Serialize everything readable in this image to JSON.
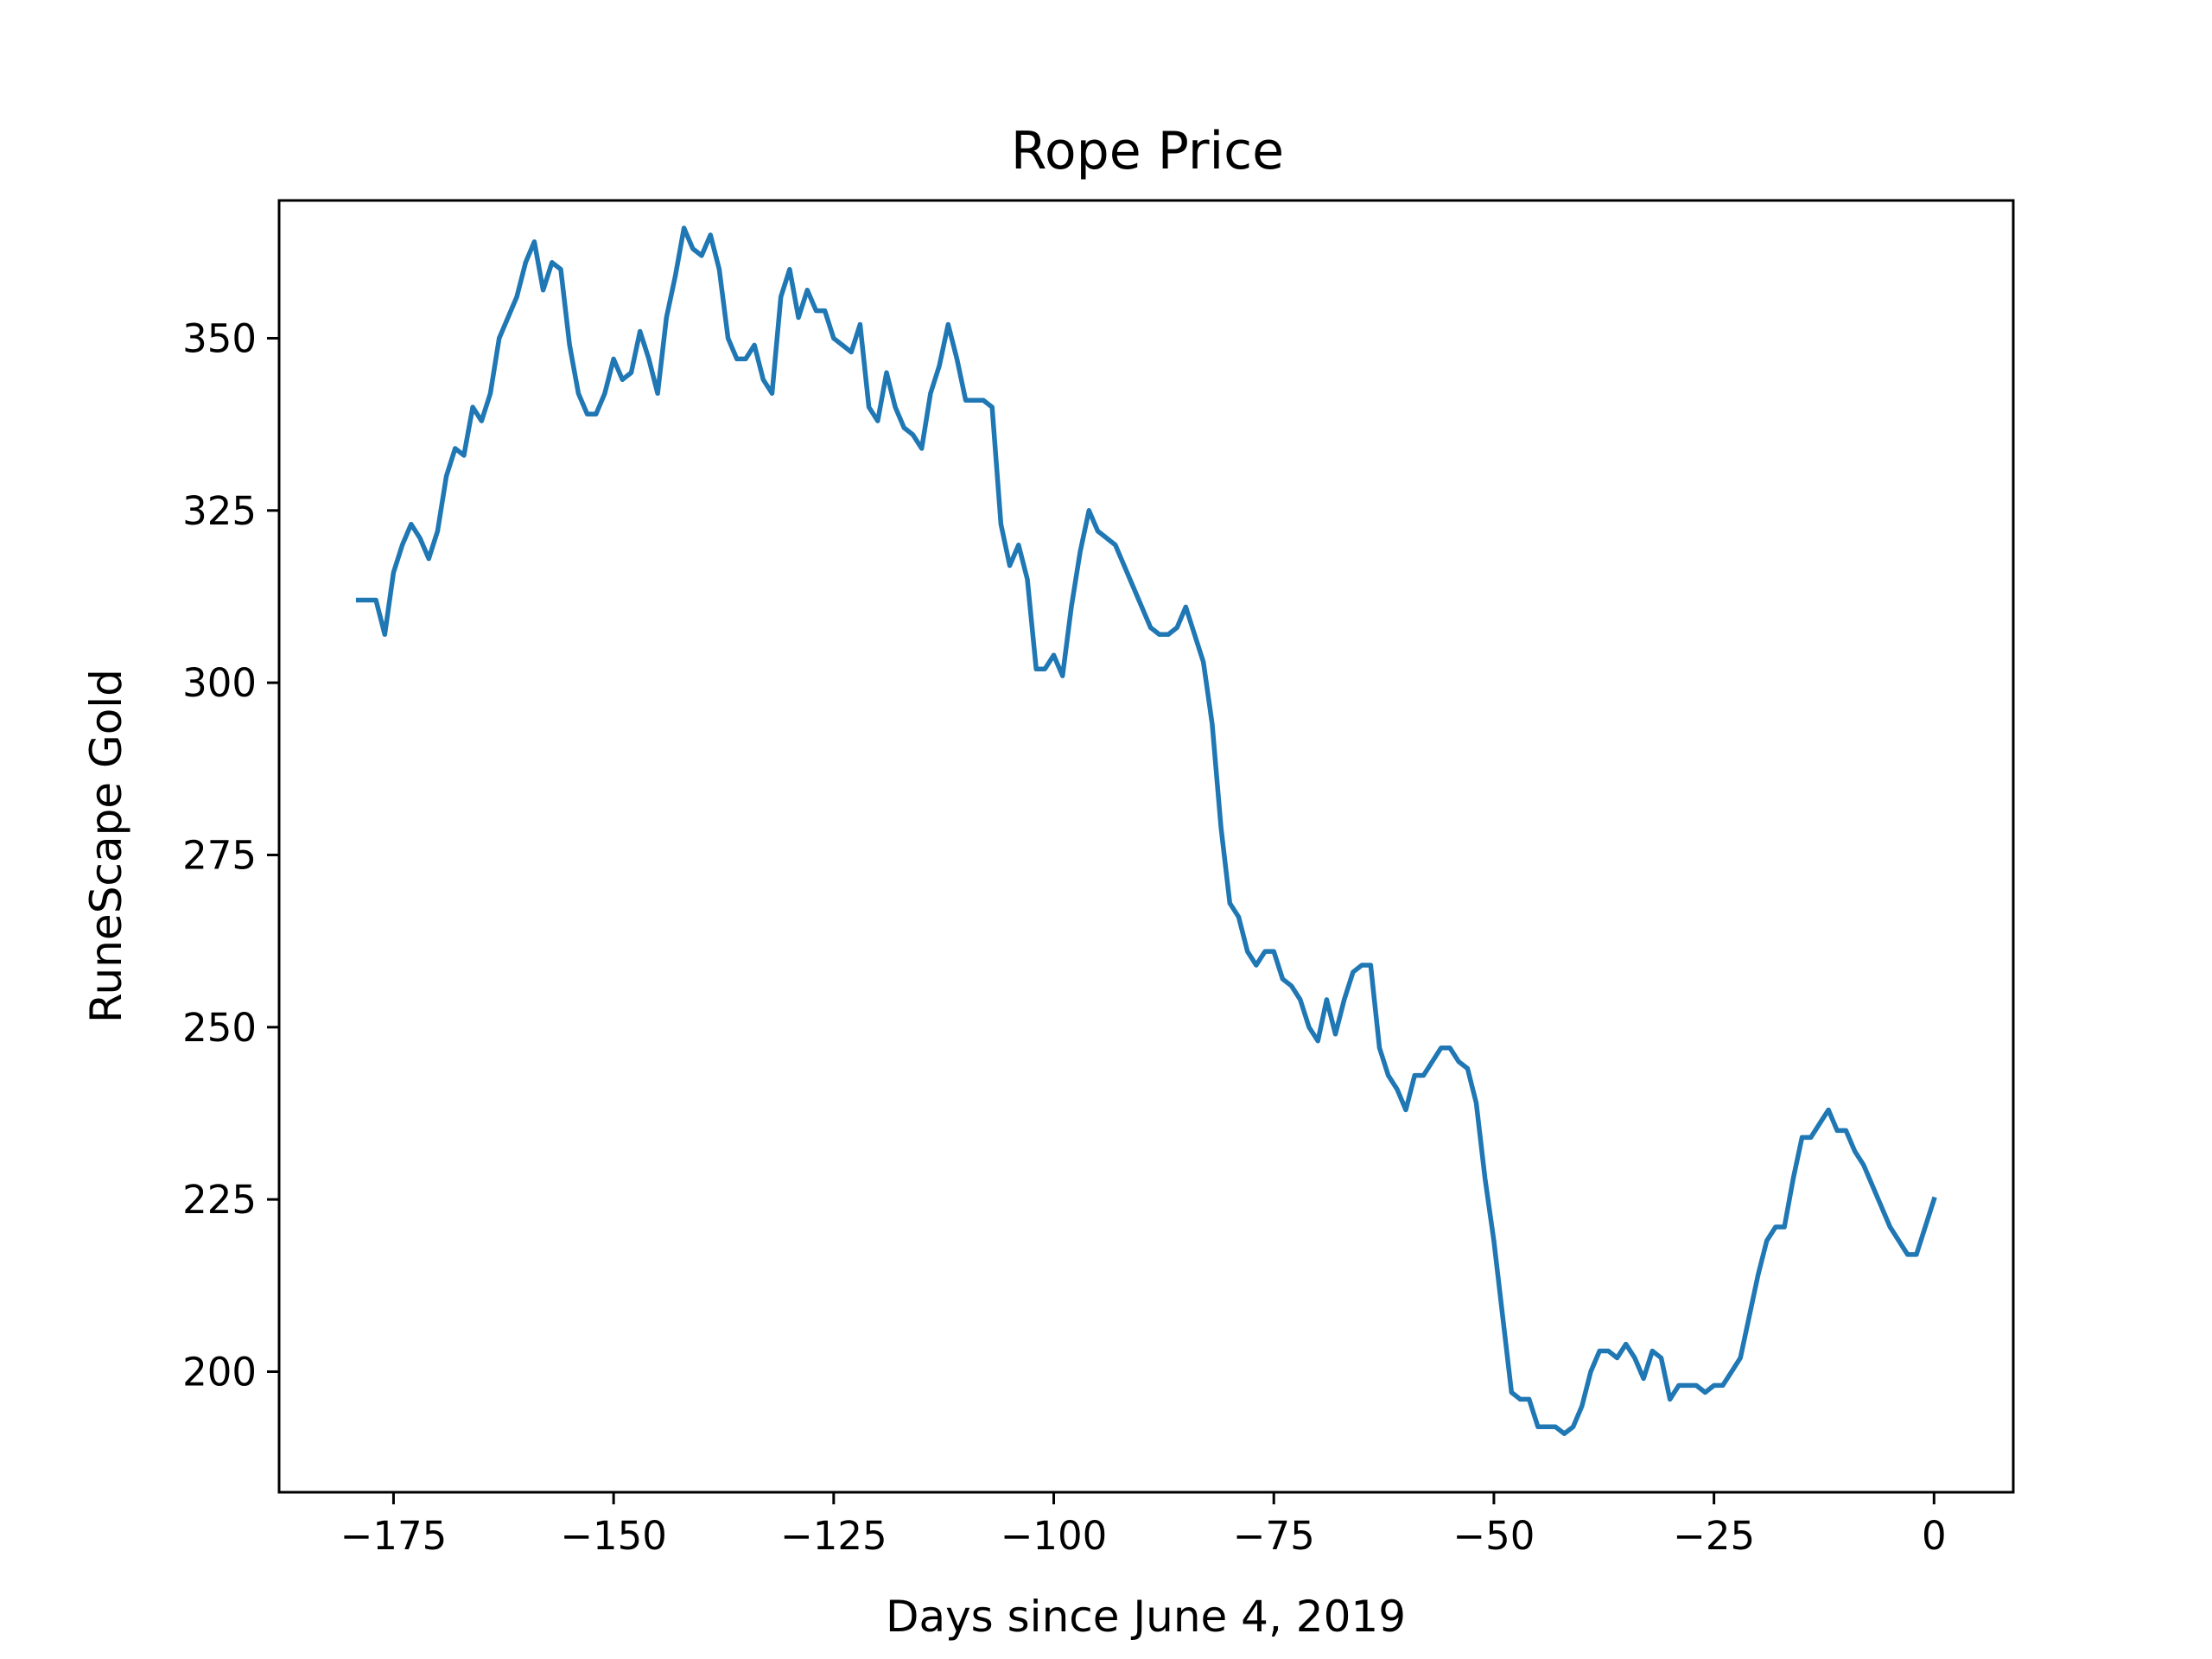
{
  "chart_data": {
    "type": "line",
    "title": "Rope Price",
    "xlabel": "Days since June 4, 2019",
    "ylabel": "RuneScape Gold",
    "xlim": [
      -188,
      9
    ],
    "ylim": [
      182.5,
      370
    ],
    "x_ticks": [
      -175,
      -150,
      -125,
      -100,
      -75,
      -50,
      -25,
      0
    ],
    "x_tick_labels": [
      "−175",
      "−150",
      "−125",
      "−100",
      "−75",
      "−50",
      "−25",
      "0"
    ],
    "y_ticks": [
      200,
      225,
      250,
      275,
      300,
      325,
      350
    ],
    "y_tick_labels": [
      "200",
      "225",
      "250",
      "275",
      "300",
      "325",
      "350"
    ],
    "grid": false,
    "series": [
      {
        "color": "#1f77b4",
        "x": [
          -179,
          -178,
          -177,
          -176,
          -175,
          -174,
          -173,
          -172,
          -171,
          -170,
          -169,
          -168,
          -167,
          -166,
          -165,
          -164,
          -163,
          -162,
          -161,
          -160,
          -159,
          -158,
          -157,
          -156,
          -155,
          -154,
          -153,
          -152,
          -151,
          -150,
          -149,
          -148,
          -147,
          -146,
          -145,
          -144,
          -143,
          -142,
          -141,
          -140,
          -139,
          -138,
          -137,
          -136,
          -135,
          -134,
          -133,
          -132,
          -131,
          -130,
          -129,
          -128,
          -127,
          -126,
          -125,
          -124,
          -123,
          -122,
          -121,
          -120,
          -119,
          -118,
          -117,
          -116,
          -115,
          -114,
          -113,
          -112,
          -111,
          -110,
          -109,
          -108,
          -107,
          -106,
          -105,
          -104,
          -103,
          -102,
          -101,
          -100,
          -99,
          -98,
          -97,
          -96,
          -95,
          -94,
          -93,
          -92,
          -91,
          -90,
          -89,
          -88,
          -87,
          -86,
          -85,
          -84,
          -83,
          -82,
          -81,
          -80,
          -79,
          -78,
          -77,
          -76,
          -75,
          -74,
          -73,
          -72,
          -71,
          -70,
          -69,
          -68,
          -67,
          -66,
          -65,
          -64,
          -63,
          -62,
          -61,
          -60,
          -59,
          -58,
          -57,
          -56,
          -55,
          -54,
          -53,
          -52,
          -51,
          -50,
          -49,
          -48,
          -47,
          -46,
          -45,
          -44,
          -43,
          -42,
          -41,
          -40,
          -39,
          -38,
          -37,
          -36,
          -35,
          -34,
          -33,
          -32,
          -31,
          -30,
          -29,
          -28,
          -27,
          -26,
          -25,
          -24,
          -23,
          -22,
          -21,
          -20,
          -19,
          -18,
          -17,
          -16,
          -15,
          -14,
          -13,
          -12,
          -11,
          -10,
          -9,
          -8,
          -7,
          -6,
          -5,
          -4,
          -3,
          -2,
          -1,
          0
        ],
        "y": [
          312,
          312,
          312,
          307,
          316,
          320,
          323,
          321,
          318,
          322,
          330,
          334,
          333,
          340,
          338,
          342,
          350,
          353,
          356,
          361,
          364,
          357,
          361,
          360,
          349,
          342,
          339,
          339,
          342,
          347,
          344,
          345,
          351,
          347,
          342,
          353,
          359,
          366,
          363,
          362,
          365,
          360,
          350,
          347,
          347,
          349,
          344,
          342,
          356,
          360,
          353,
          357,
          354,
          354,
          350,
          349,
          348,
          352,
          340,
          338,
          345,
          340,
          337,
          336,
          334,
          342,
          346,
          352,
          347,
          341,
          341,
          341,
          340,
          323,
          317,
          320,
          315,
          302,
          302,
          304,
          301,
          311,
          319,
          325,
          322,
          321,
          320,
          317,
          314,
          311,
          308,
          307,
          307,
          308,
          311,
          307,
          303,
          294,
          279,
          268,
          266,
          261,
          259,
          261,
          261,
          257,
          256,
          254,
          250,
          248,
          254,
          249,
          254,
          258,
          259,
          259,
          247,
          243,
          241,
          238,
          243,
          243,
          245,
          247,
          247,
          245,
          244,
          239,
          228,
          219,
          208,
          197,
          196,
          196,
          192,
          192,
          192,
          191,
          192,
          195,
          200,
          203,
          203,
          202,
          204,
          202,
          199,
          203,
          202,
          196,
          198,
          198,
          198,
          197,
          198,
          198,
          200,
          202,
          208,
          214,
          219,
          221,
          221,
          228,
          234,
          234,
          236,
          238,
          235,
          235,
          232,
          230,
          227,
          224,
          221,
          219,
          217,
          217,
          221,
          225
        ]
      }
    ]
  }
}
